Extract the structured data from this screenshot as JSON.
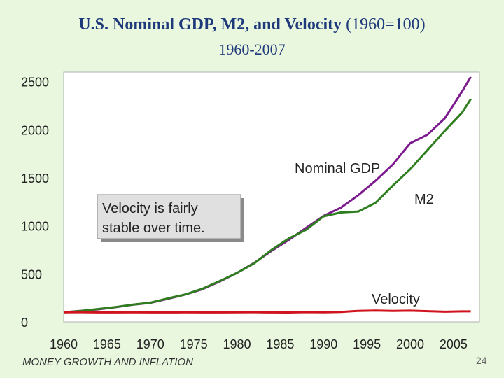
{
  "slide": {
    "title_main": "U.S. Nominal GDP, M2, and Velocity",
    "title_suffix": "(1960=100)",
    "subtitle": "1960-2007",
    "footer": "MONEY GROWTH AND INFLATION",
    "page_number": "24"
  },
  "colors": {
    "gdp": "#7B1A8C",
    "m2": "#2E7D1E",
    "velocity": "#D0141E",
    "background": "#E9F7DF",
    "plot_background": "#FFFFFF"
  },
  "chart_data": {
    "type": "line",
    "x": [
      1960,
      1962,
      1964,
      1966,
      1968,
      1970,
      1972,
      1974,
      1976,
      1978,
      1980,
      1982,
      1984,
      1986,
      1988,
      1990,
      1992,
      1994,
      1996,
      1998,
      2000,
      2002,
      2004,
      2006,
      2007
    ],
    "series": [
      {
        "name": "Nominal GDP",
        "values": [
          100,
          116,
          131,
          154,
          179,
          198,
          240,
          285,
          340,
          420,
          510,
          615,
          740,
          855,
          980,
          1105,
          1190,
          1320,
          1470,
          1640,
          1860,
          1950,
          2120,
          2400,
          2550
        ]
      },
      {
        "name": "M2",
        "values": [
          100,
          115,
          135,
          155,
          180,
          200,
          245,
          285,
          345,
          425,
          510,
          610,
          750,
          870,
          960,
          1100,
          1140,
          1150,
          1240,
          1420,
          1590,
          1790,
          1990,
          2180,
          2320
        ]
      },
      {
        "name": "Velocity",
        "values": [
          100,
          101,
          99,
          99,
          100,
          99,
          99,
          100,
          99,
          99,
          100,
          101,
          99,
          98,
          102,
          100,
          104,
          115,
          118,
          115,
          117,
          112,
          106,
          110,
          110
        ]
      }
    ],
    "xlim": [
      1960,
      2008
    ],
    "ylim": [
      0,
      2600
    ],
    "yticks": [
      0,
      500,
      1000,
      1500,
      2000,
      2500
    ],
    "xticks": [
      1960,
      1965,
      1970,
      1975,
      1980,
      1985,
      1990,
      1995,
      2000,
      2005
    ],
    "annotations": {
      "gdp_label": "Nominal GDP",
      "m2_label": "M2",
      "velocity_label": "Velocity",
      "callout_line1": "Velocity is fairly",
      "callout_line2": "stable over time."
    },
    "grid": false,
    "legend": "none"
  }
}
